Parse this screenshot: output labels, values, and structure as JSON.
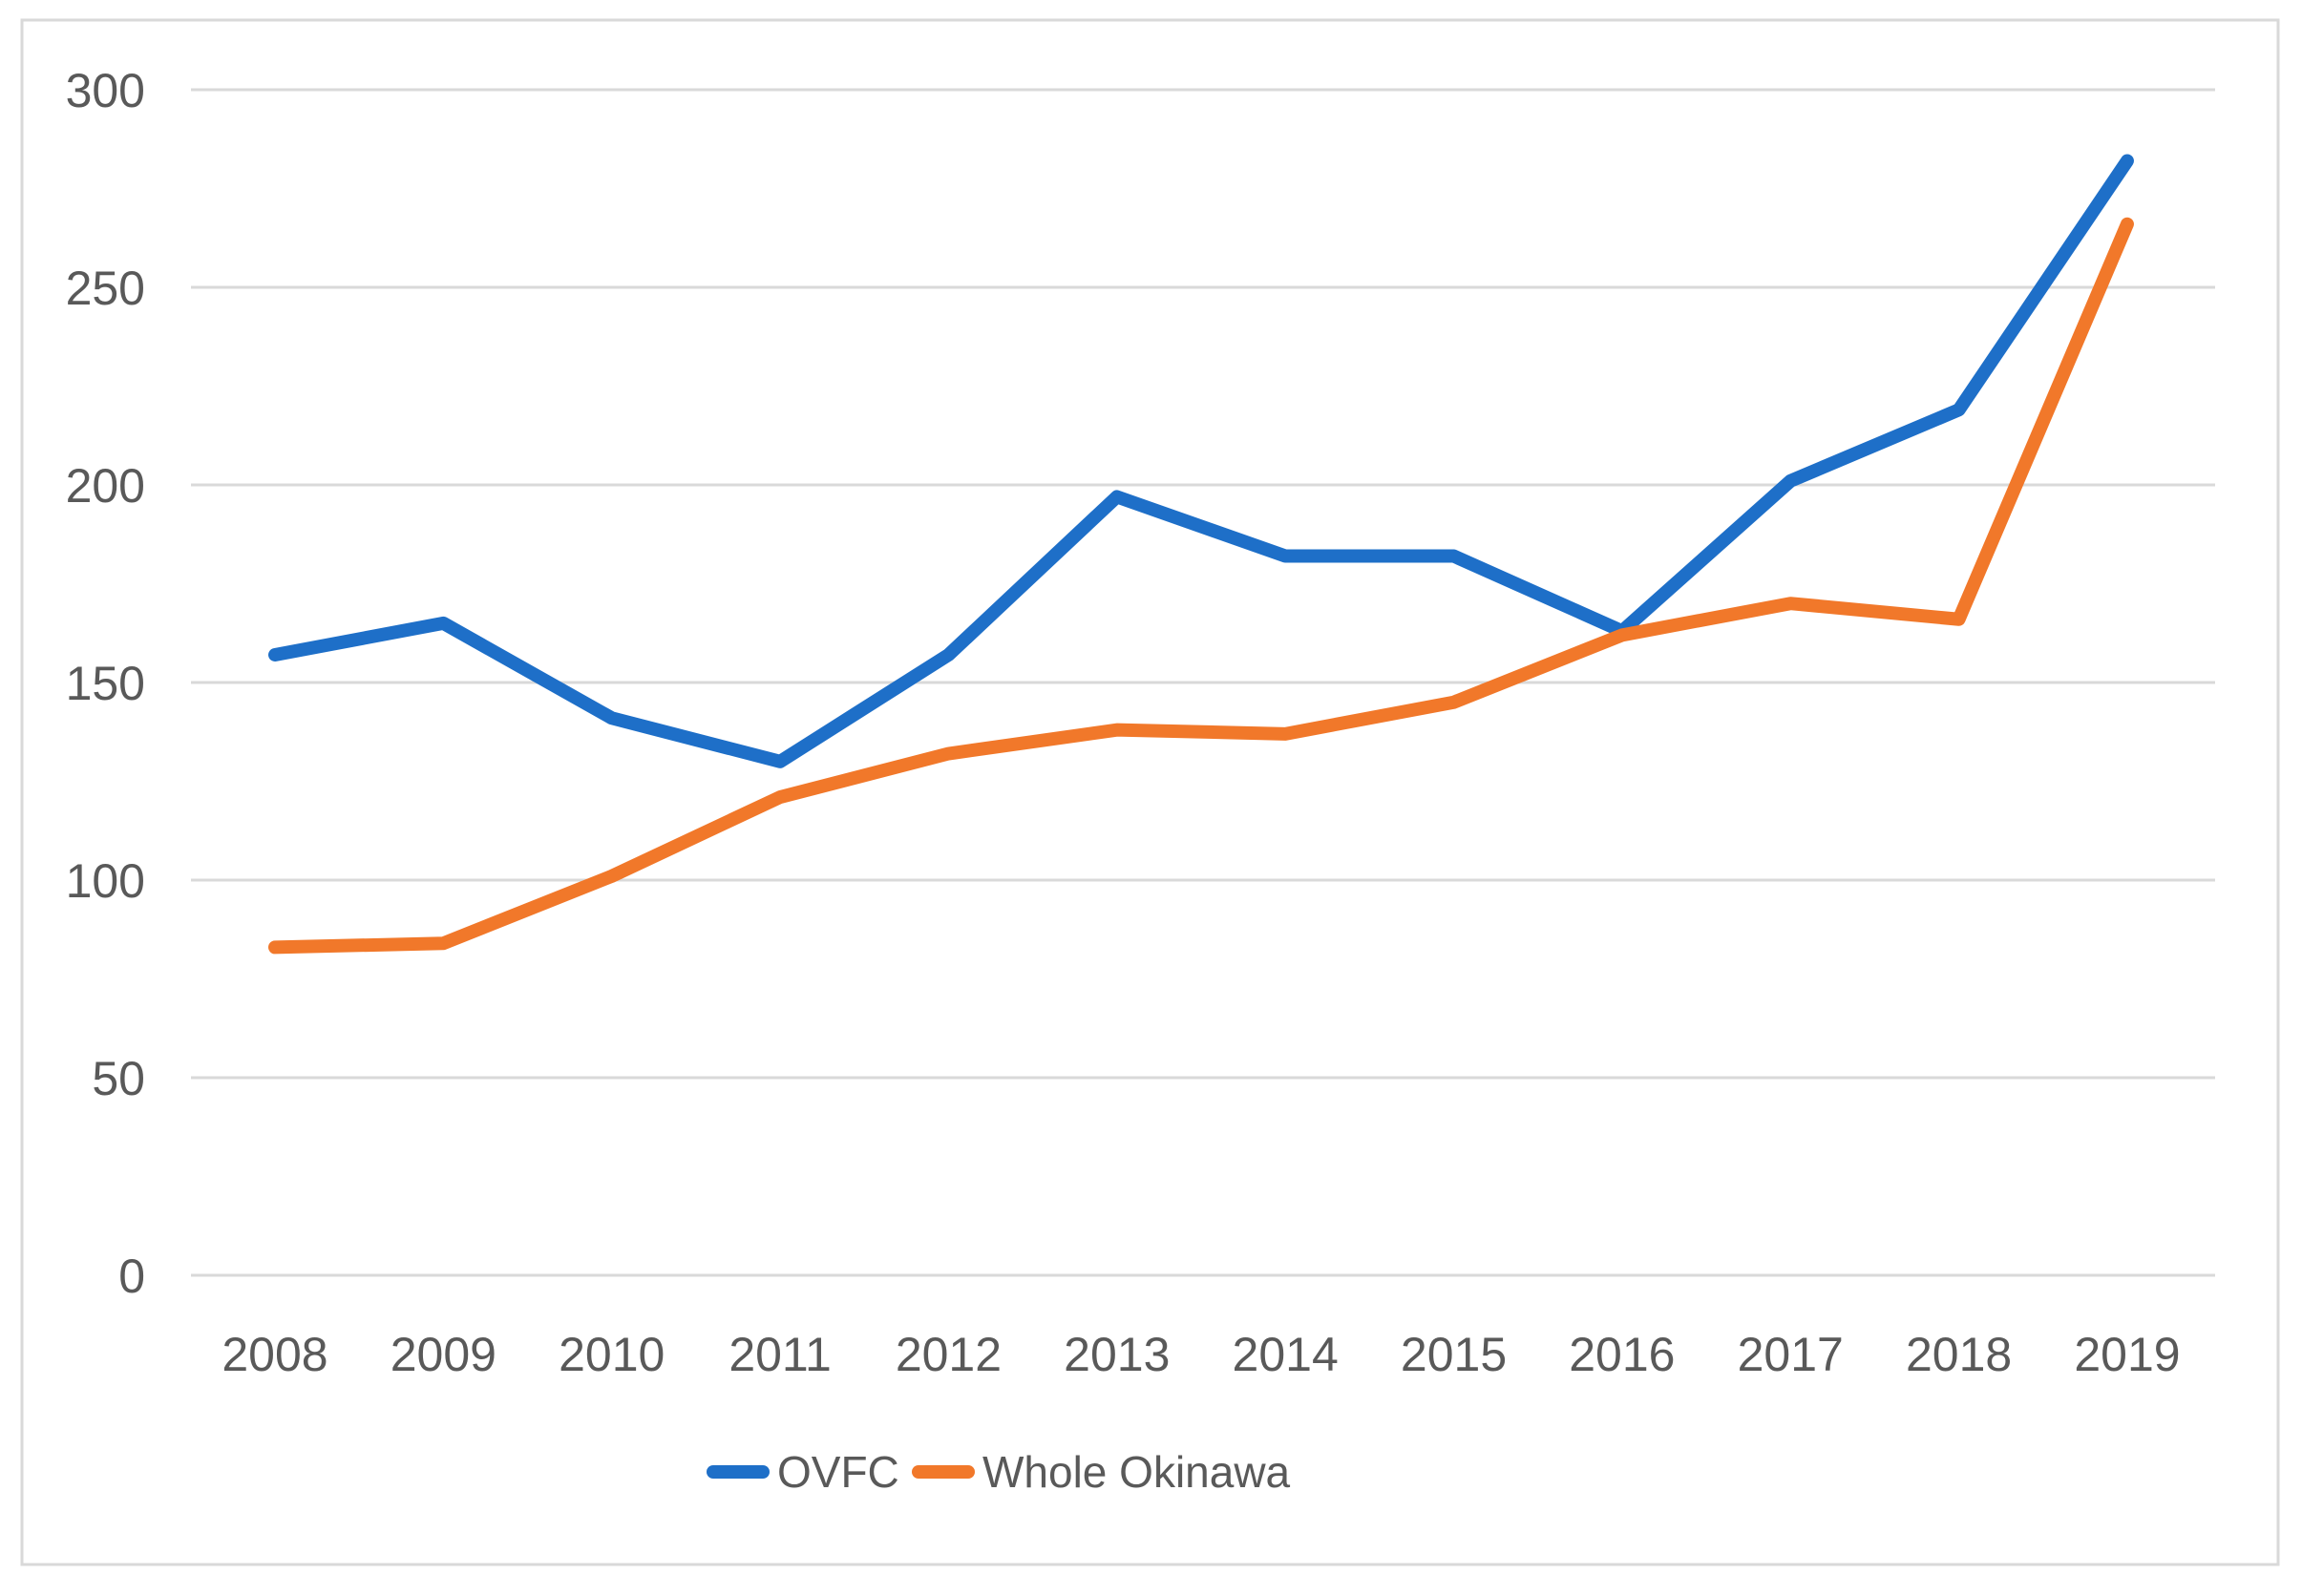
{
  "chart_data": {
    "type": "line",
    "title": "",
    "xlabel": "",
    "ylabel": "",
    "categories": [
      "2008",
      "2009",
      "2010",
      "2011",
      "2012",
      "2013",
      "2014",
      "2015",
      "2016",
      "2017",
      "2018",
      "2019"
    ],
    "series": [
      {
        "name": "OVFC",
        "color": "#1E6FC8",
        "values": [
          157,
          165,
          141,
          130,
          157,
          197,
          182,
          182,
          163,
          201,
          219,
          282
        ]
      },
      {
        "name": "Whole Okinawa",
        "color": "#F1782A",
        "values": [
          83,
          84,
          101,
          121,
          132,
          138,
          137,
          145,
          162,
          170,
          166,
          266
        ]
      }
    ],
    "ylim": [
      0,
      300
    ],
    "ytick_step": 50,
    "y_tick_labels": [
      "0",
      "50",
      "100",
      "150",
      "200",
      "250",
      "300"
    ],
    "grid": true,
    "legend_position": "bottom"
  },
  "colors": {
    "gridline": "#D9D9D9",
    "chart_border": "#D9D9D9",
    "tick_label": "#595959",
    "legend_label": "#595959",
    "background": "#FFFFFF"
  },
  "legend": {
    "items": [
      {
        "label": "OVFC",
        "swatch_color": "#1E6FC8"
      },
      {
        "label": "Whole Okinawa",
        "swatch_color": "#F1782A"
      }
    ]
  }
}
